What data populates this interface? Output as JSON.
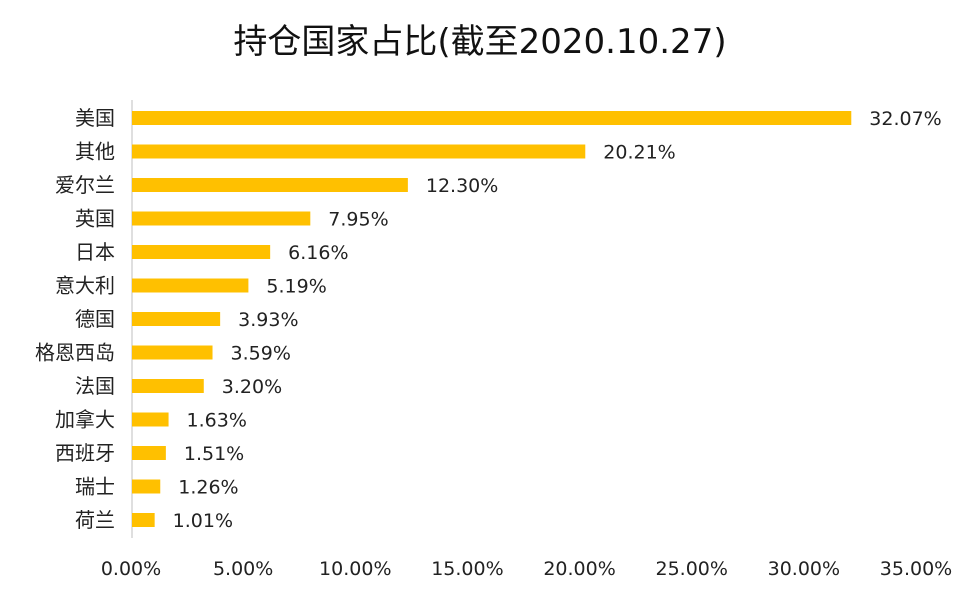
{
  "chart_data": {
    "type": "bar",
    "orientation": "horizontal",
    "title": "持仓国家占比(截至2020.10.27)",
    "categories": [
      "美国",
      "其他",
      "爱尔兰",
      "英国",
      "日本",
      "意大利",
      "德国",
      "格恩西岛",
      "法国",
      "加拿大",
      "西班牙",
      "瑞士",
      "荷兰"
    ],
    "values": [
      32.07,
      20.21,
      12.3,
      7.95,
      6.16,
      5.19,
      3.93,
      3.59,
      3.2,
      1.63,
      1.51,
      1.26,
      1.01
    ],
    "value_labels": [
      "32.07%",
      "20.21%",
      "12.30%",
      "7.95%",
      "6.16%",
      "5.19%",
      "3.93%",
      "3.59%",
      "3.20%",
      "1.63%",
      "1.51%",
      "1.26%",
      "1.01%"
    ],
    "x_ticks": [
      "0.00%",
      "5.00%",
      "10.00%",
      "15.00%",
      "20.00%",
      "25.00%",
      "30.00%",
      "35.00%"
    ],
    "xlim": [
      0,
      35
    ],
    "bar_color": "#FFC000",
    "grid": false,
    "legend": "none"
  }
}
